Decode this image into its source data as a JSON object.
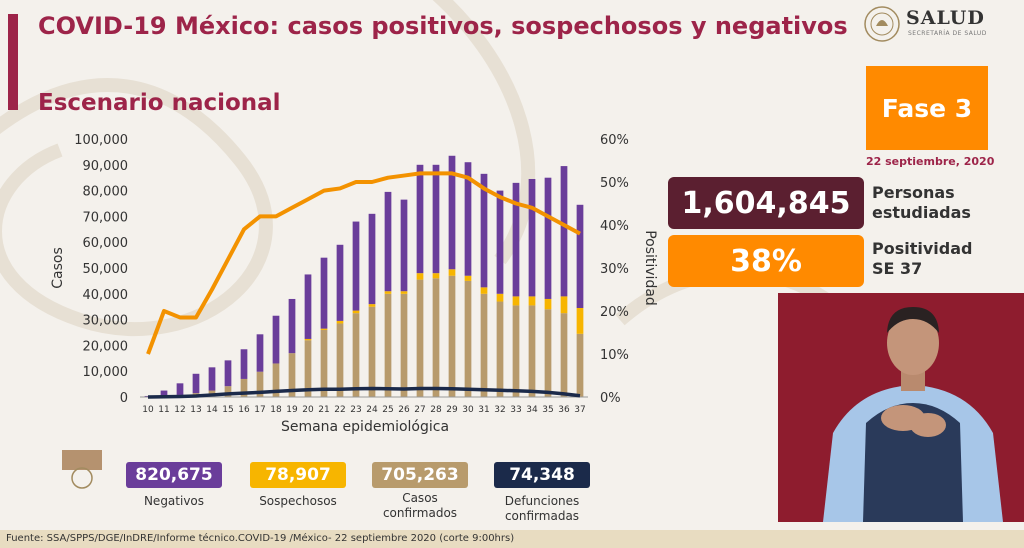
{
  "header": {
    "title": "COVID-19 México: casos positivos, sospechosos y negativos",
    "subtitle": "Escenario nacional"
  },
  "logo": {
    "name": "SALUD",
    "tagline": "SECRETARÍA DE SALUD",
    "icon": "coat-of-arms-icon"
  },
  "phase": {
    "label": "Fase 3",
    "date": "22 septiembre, 2020"
  },
  "stats": {
    "persons_value": "1,604,845",
    "persons_label_1": "Personas",
    "persons_label_2": "estudiadas",
    "positivity_value": "38%",
    "positivity_label_1": "Positividad",
    "positivity_label_2": "SE 37"
  },
  "legend": {
    "negativos_value": "820,675",
    "negativos_label": "Negativos",
    "sospechosos_value": "78,907",
    "sospechosos_label": "Sospechosos",
    "confirmados_value": "705,263",
    "confirmados_label_1": "Casos",
    "confirmados_label_2": "confirmados",
    "defunciones_value": "74,348",
    "defunciones_label_1": "Defunciones",
    "defunciones_label_2": "confirmadas"
  },
  "footer": {
    "source": "Fuente: SSA/SPPS/DGE/InDRE/Informe técnico.COVID-19 /México- 22 septiembre 2020 (corte 9:00hrs)"
  },
  "colors": {
    "brand": "#9d2449",
    "negativos": "#6a3d9a",
    "sospechosos": "#f7b500",
    "confirmados": "#b89b6c",
    "defunciones": "#1b2a4a",
    "positividad": "#f39200",
    "dark_box": "#5b1f30",
    "orange": "#ff8a00"
  },
  "chart_data": {
    "type": "bar",
    "stacked": true,
    "xlabel": "Semana epidemiológica",
    "ylabel": "Casos",
    "y2label": "Positividad",
    "ylim": [
      0,
      100000
    ],
    "y2lim": [
      0,
      60
    ],
    "yticks": [
      "0",
      "10,000",
      "20,000",
      "30,000",
      "40,000",
      "50,000",
      "60,000",
      "70,000",
      "80,000",
      "90,000",
      "100,000"
    ],
    "y2ticks": [
      "0%",
      "10%",
      "20%",
      "30%",
      "40%",
      "50%",
      "60%"
    ],
    "categories": [
      "10",
      "11",
      "12",
      "13",
      "14",
      "15",
      "16",
      "17",
      "18",
      "19",
      "20",
      "21",
      "22",
      "23",
      "24",
      "25",
      "26",
      "27",
      "28",
      "29",
      "30",
      "31",
      "32",
      "33",
      "34",
      "35",
      "36",
      "37"
    ],
    "series": [
      {
        "name": "Casos confirmados",
        "type": "bar",
        "values": [
          100,
          500,
          800,
          1500,
          2500,
          4200,
          7000,
          9800,
          13000,
          17000,
          22000,
          26000,
          28500,
          32500,
          35000,
          40000,
          40000,
          45500,
          46000,
          47000,
          45000,
          40000,
          37000,
          35500,
          35500,
          34000,
          32500,
          24500
        ]
      },
      {
        "name": "Sospechosos",
        "type": "bar",
        "values": [
          0,
          0,
          0,
          0,
          0,
          0,
          0,
          0,
          0,
          0,
          500,
          500,
          1000,
          1000,
          1000,
          1000,
          1000,
          2500,
          2000,
          2500,
          2000,
          2500,
          3000,
          3500,
          3500,
          4000,
          6500,
          10000
        ]
      },
      {
        "name": "Negativos",
        "type": "bar",
        "values": [
          300,
          2000,
          4500,
          7500,
          9000,
          10000,
          11500,
          14500,
          18500,
          21000,
          25000,
          27500,
          29500,
          34500,
          35000,
          38500,
          35500,
          42000,
          42000,
          44000,
          44000,
          44000,
          40000,
          44000,
          45500,
          47000,
          50500,
          40000
        ]
      },
      {
        "name": "Defunciones",
        "type": "line",
        "axis": "left",
        "values": [
          0,
          100,
          200,
          400,
          800,
          1200,
          1500,
          1800,
          2200,
          2500,
          2800,
          3000,
          3000,
          3200,
          3300,
          3200,
          3100,
          3300,
          3300,
          3200,
          3000,
          2800,
          2600,
          2400,
          2200,
          1800,
          1200,
          500
        ]
      },
      {
        "name": "Positividad",
        "type": "line",
        "axis": "right",
        "values": [
          10,
          20,
          18.5,
          18.5,
          25,
          32,
          39,
          42,
          42,
          44,
          46,
          48,
          48.5,
          50,
          50,
          51,
          51.5,
          52,
          52,
          52,
          51,
          48.5,
          46.5,
          45,
          44,
          42,
          40,
          38
        ]
      }
    ]
  }
}
